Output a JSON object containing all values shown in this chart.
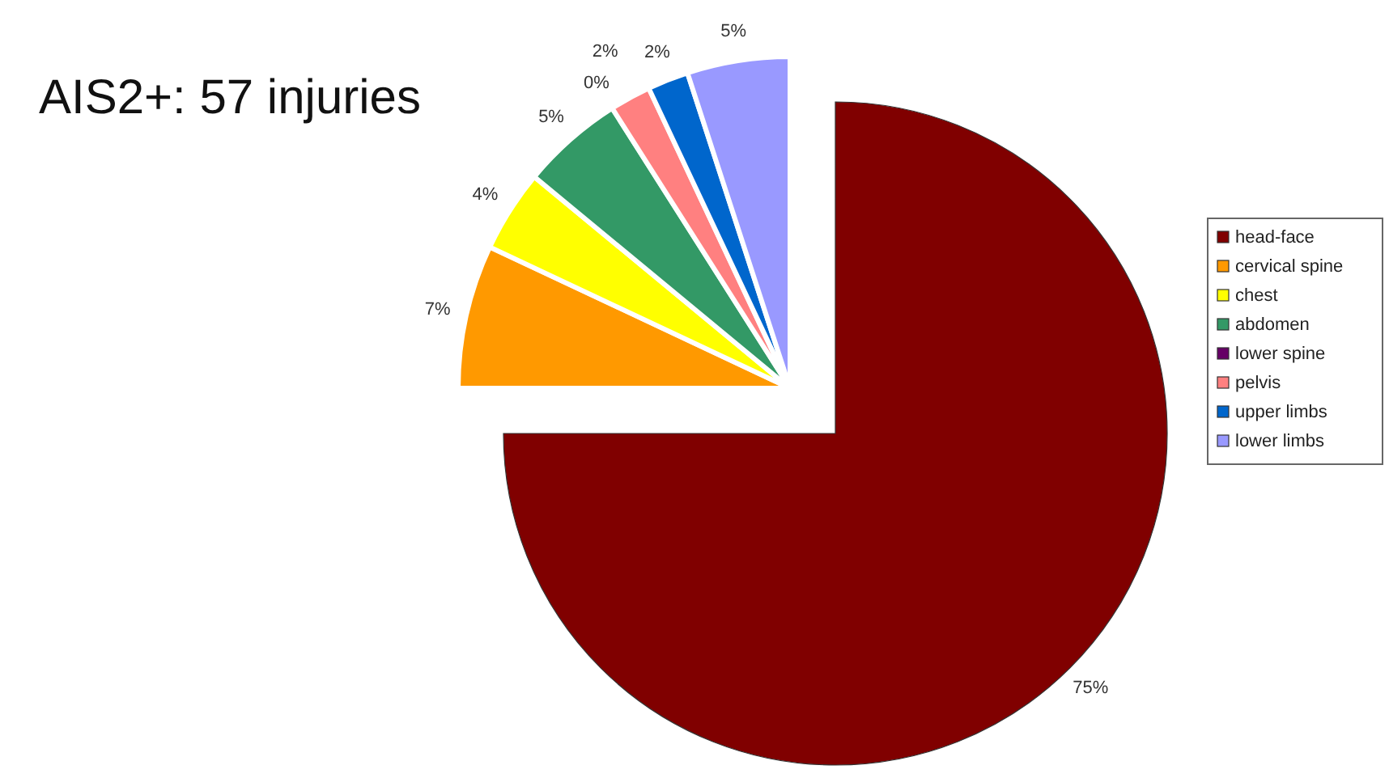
{
  "chart_data": {
    "type": "pie",
    "title": "AIS2+: 57 injuries",
    "categories": [
      "head-face",
      "cervical spine",
      "chest",
      "abdomen",
      "lower spine",
      "pelvis",
      "upper limbs",
      "lower limbs"
    ],
    "values": [
      75,
      7,
      4,
      5,
      0,
      2,
      2,
      5
    ],
    "value_labels": [
      "75%",
      "7%",
      "4%",
      "5%",
      "0%",
      "2%",
      "2%",
      "5%"
    ],
    "colors": [
      "#800000",
      "#ff9900",
      "#ffff00",
      "#339966",
      "#660066",
      "#ff8080",
      "#0066cc",
      "#9999ff"
    ],
    "legend": "right"
  }
}
